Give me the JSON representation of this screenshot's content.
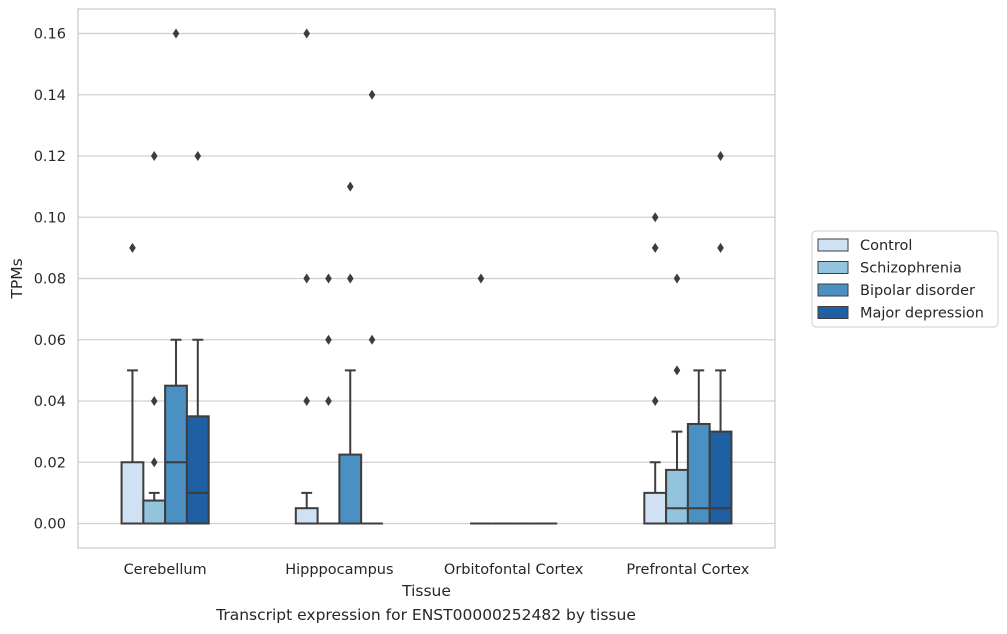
{
  "chart_data": {
    "type": "box",
    "xlabel": "Tissue",
    "ylabel": "TPMs",
    "caption": "Transcript expression for ENST00000252482 by tissue",
    "ylim": [
      -0.008,
      0.168
    ],
    "yticks": [
      0.0,
      0.02,
      0.04,
      0.06,
      0.08,
      0.1,
      0.12,
      0.14,
      0.16
    ],
    "ytick_labels": [
      "0.00",
      "0.02",
      "0.04",
      "0.06",
      "0.08",
      "0.10",
      "0.12",
      "0.14",
      "0.16"
    ],
    "grid": true,
    "legend_position": "right",
    "categories": [
      "Cerebellum",
      "Hipppocampus",
      "Orbitofontal Cortex",
      "Prefrontal Cortex"
    ],
    "series": [
      {
        "name": "Control",
        "color": "#cfe1f2",
        "boxes": [
          {
            "whislo": 0.0,
            "q1": 0.0,
            "median": 0.0,
            "q3": 0.02,
            "whishi": 0.05,
            "fliers": [
              0.09
            ]
          },
          {
            "whislo": 0.0,
            "q1": 0.0,
            "median": 0.0,
            "q3": 0.005,
            "whishi": 0.01,
            "fliers": [
              0.16,
              0.08,
              0.04
            ]
          },
          {
            "whislo": 0.0,
            "q1": 0.0,
            "median": 0.0,
            "q3": 0.0,
            "whishi": 0.0,
            "fliers": [
              0.08
            ]
          },
          {
            "whislo": 0.0,
            "q1": 0.0,
            "median": 0.0,
            "q3": 0.01,
            "whishi": 0.02,
            "fliers": [
              0.1,
              0.09,
              0.04
            ]
          }
        ]
      },
      {
        "name": "Schizophrenia",
        "color": "#93c4de",
        "boxes": [
          {
            "whislo": 0.0,
            "q1": 0.0,
            "median": 0.0,
            "q3": 0.0075,
            "whishi": 0.01,
            "fliers": [
              0.12,
              0.04,
              0.02
            ]
          },
          {
            "whislo": 0.0,
            "q1": 0.0,
            "median": 0.0,
            "q3": 0.0,
            "whishi": 0.0,
            "fliers": [
              0.08,
              0.06,
              0.04
            ]
          },
          {
            "whislo": 0.0,
            "q1": 0.0,
            "median": 0.0,
            "q3": 0.0,
            "whishi": 0.0,
            "fliers": []
          },
          {
            "whislo": 0.0,
            "q1": 0.0,
            "median": 0.005,
            "q3": 0.0175,
            "whishi": 0.03,
            "fliers": [
              0.08,
              0.05
            ]
          }
        ]
      },
      {
        "name": "Bipolar disorder",
        "color": "#4a90c2",
        "boxes": [
          {
            "whislo": 0.0,
            "q1": 0.0,
            "median": 0.02,
            "q3": 0.045,
            "whishi": 0.06,
            "fliers": [
              0.16
            ]
          },
          {
            "whislo": 0.0,
            "q1": 0.0,
            "median": 0.0,
            "q3": 0.0225,
            "whishi": 0.05,
            "fliers": [
              0.11,
              0.08
            ]
          },
          {
            "whislo": 0.0,
            "q1": 0.0,
            "median": 0.0,
            "q3": 0.0,
            "whishi": 0.0,
            "fliers": []
          },
          {
            "whislo": 0.0,
            "q1": 0.0,
            "median": 0.005,
            "q3": 0.0325,
            "whishi": 0.05,
            "fliers": []
          }
        ]
      },
      {
        "name": "Major depression",
        "color": "#1f5fa3",
        "boxes": [
          {
            "whislo": 0.0,
            "q1": 0.0,
            "median": 0.01,
            "q3": 0.035,
            "whishi": 0.06,
            "fliers": [
              0.12
            ]
          },
          {
            "whislo": 0.0,
            "q1": 0.0,
            "median": 0.0,
            "q3": 0.0,
            "whishi": 0.0,
            "fliers": [
              0.14,
              0.06
            ]
          },
          {
            "whislo": 0.0,
            "q1": 0.0,
            "median": 0.0,
            "q3": 0.0,
            "whishi": 0.0,
            "fliers": []
          },
          {
            "whislo": 0.0,
            "q1": 0.0,
            "median": 0.005,
            "q3": 0.03,
            "whishi": 0.05,
            "fliers": [
              0.12,
              0.09
            ]
          }
        ]
      }
    ]
  }
}
